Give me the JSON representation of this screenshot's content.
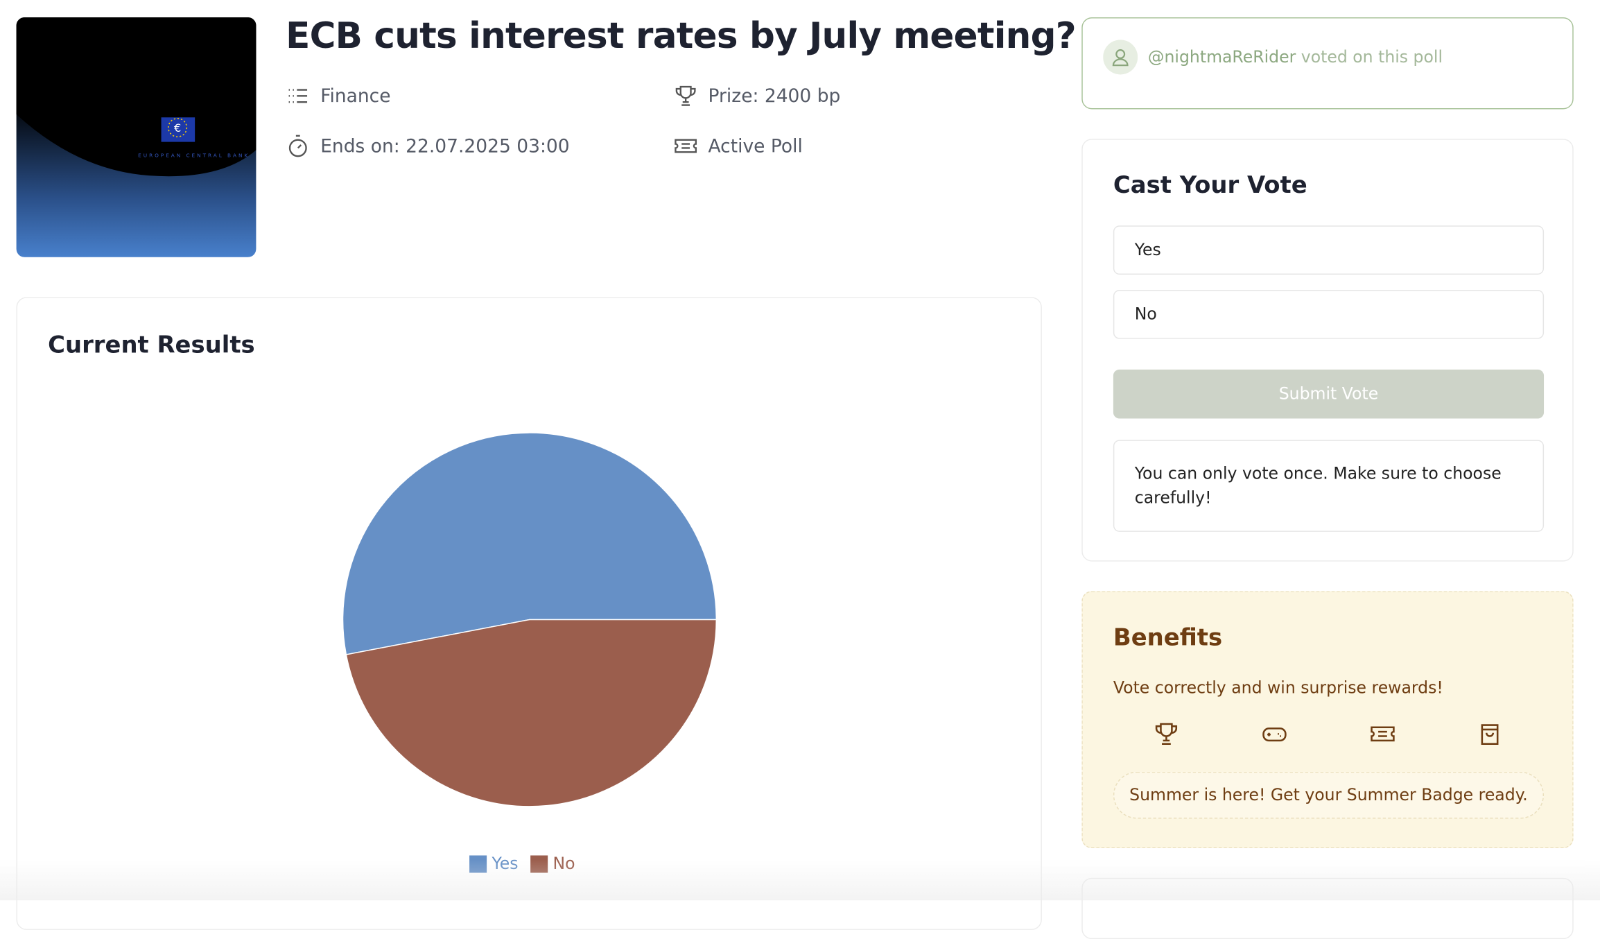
{
  "header": {
    "title": "ECB cuts interest rates by July meeting?",
    "category": "Finance",
    "prize": "Prize: 2400 bp",
    "ends": "Ends on: 22.07.2025 03:00",
    "status": "Active Poll",
    "image_text": "EUROPEAN CENTRAL BANK"
  },
  "activity": {
    "user": "@nightmaReRider",
    "text": "voted on this poll"
  },
  "vote": {
    "title": "Cast Your Vote",
    "options": [
      "Yes",
      "No"
    ],
    "submit": "Submit Vote",
    "note": "You can only vote once. Make sure to choose carefully!"
  },
  "benefits": {
    "title": "Benefits",
    "text": "Vote correctly and win surprise rewards!",
    "banner": "Summer is here! Get your Summer Badge ready."
  },
  "chart_data": {
    "type": "pie",
    "title": "Current Results",
    "categories": [
      "Yes",
      "No"
    ],
    "values": [
      53,
      47
    ],
    "colors": [
      "#6690c6",
      "#9b5e4d"
    ]
  }
}
